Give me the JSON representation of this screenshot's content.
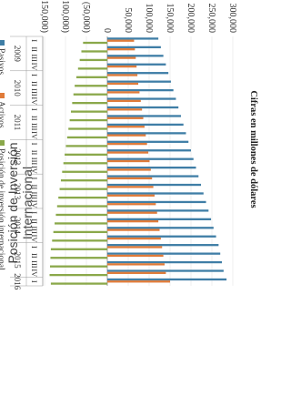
{
  "title": "Posición de Inversión Internacional",
  "chart_data": {
    "type": "bar",
    "subtitle": "Cifras en millones de dólares",
    "periods": [
      "I",
      "II",
      "III",
      "IV",
      "I",
      "II",
      "III",
      "IV",
      "I",
      "II",
      "III",
      "IV",
      "I",
      "II",
      "III",
      "IV",
      "I",
      "II",
      "III",
      "IV",
      "I",
      "II",
      "III",
      "IV",
      "I",
      "II",
      "III",
      "IV",
      "I"
    ],
    "years": [
      {
        "label": "2009",
        "periods": 4
      },
      {
        "label": "2010",
        "periods": 4
      },
      {
        "label": "2011",
        "periods": 4
      },
      {
        "label": "2012",
        "periods": 4
      },
      {
        "label": "2013",
        "periods": 4
      },
      {
        "label": "2014",
        "periods": 4
      },
      {
        "label": "2015",
        "periods": 4
      },
      {
        "label": "2016",
        "periods": 1
      }
    ],
    "ylim": [
      -150000,
      300000
    ],
    "ticks": [
      {
        "v": 300000,
        "label": "300,000"
      },
      {
        "v": 250000,
        "label": "250,000"
      },
      {
        "v": 200000,
        "label": "200,000"
      },
      {
        "v": 150000,
        "label": "150,000"
      },
      {
        "v": 100000,
        "label": "100,000"
      },
      {
        "v": 50000,
        "label": "50,000"
      },
      {
        "v": 0,
        "label": "0"
      },
      {
        "v": -50000,
        "label": "(50,000)"
      },
      {
        "v": -100000,
        "label": "(100,000)"
      },
      {
        "v": -150000,
        "label": "(150,000)"
      }
    ],
    "series": [
      {
        "name": "Pasivos",
        "color": "#3f7ea6",
        "values": [
          122000,
          128000,
          134000,
          140000,
          146000,
          152000,
          158000,
          164000,
          170000,
          176000,
          182000,
          188000,
          194000,
          200000,
          206000,
          212000,
          218000,
          224000,
          230000,
          236000,
          242000,
          248000,
          254000,
          260000,
          266000,
          270000,
          274000,
          278000,
          285000
        ]
      },
      {
        "name": "Activos",
        "color": "#e07b39",
        "values": [
          64000,
          66000,
          68000,
          70000,
          72000,
          74000,
          77000,
          80000,
          83000,
          86000,
          89000,
          92000,
          95000,
          98000,
          101000,
          104000,
          107000,
          110000,
          113000,
          116000,
          119000,
          122000,
          125000,
          128000,
          131000,
          134000,
          137000,
          140000,
          150000
        ]
      },
      {
        "name": "Posición de inversión internacional",
        "color": "#8aa84a",
        "values": [
          -58000,
          -62000,
          -66000,
          -70000,
          -74000,
          -78000,
          -81000,
          -84000,
          -87000,
          -90000,
          -93000,
          -96000,
          -99000,
          -102000,
          -105000,
          -108000,
          -111000,
          -114000,
          -117000,
          -120000,
          -123000,
          -126000,
          -129000,
          -132000,
          -135000,
          -136000,
          -137000,
          -138000,
          -135000
        ]
      }
    ]
  }
}
